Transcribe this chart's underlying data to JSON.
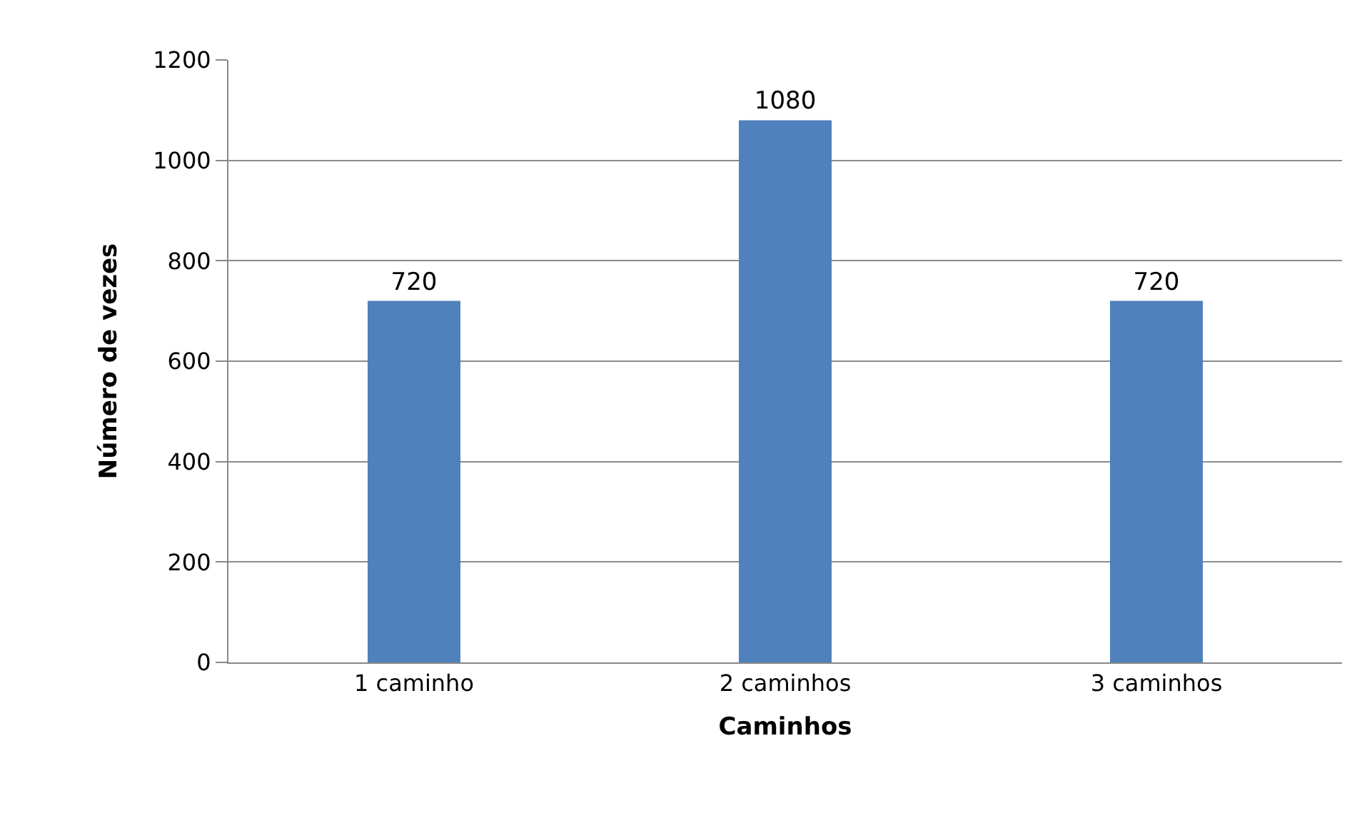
{
  "chart_data": {
    "type": "bar",
    "xlabel": "Caminhos",
    "ylabel": "Número de vezes",
    "categories": [
      "1 caminho",
      "2 caminhos",
      "3 caminhos"
    ],
    "values": [
      720,
      1080,
      720
    ],
    "color": "#4f81bd",
    "ylim": [
      0,
      1200
    ],
    "yticks": [
      0,
      200,
      400,
      600,
      800,
      1000,
      1200
    ],
    "grid": "y",
    "data_labels": true
  }
}
